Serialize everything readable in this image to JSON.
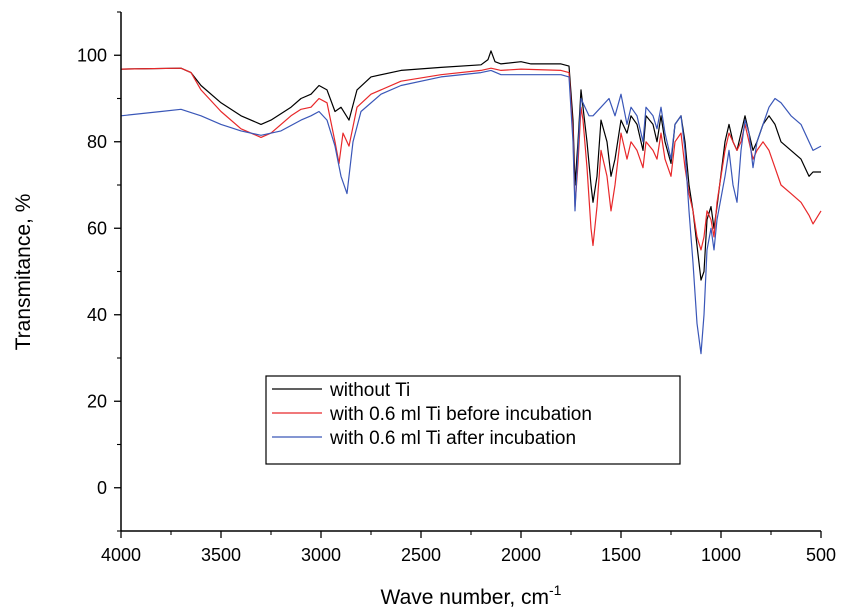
{
  "chart_data": {
    "type": "line",
    "xlabel": "Wave number, cm",
    "xlabel_superscript": "-1",
    "ylabel": "Transmitance, %",
    "xlim": [
      4000,
      500
    ],
    "ylim": [
      -10,
      110
    ],
    "x_reversed": true,
    "grid": false,
    "legend_position": "bottom-center",
    "x_ticks": [
      4000,
      3500,
      3000,
      2500,
      2000,
      1500,
      1000,
      500
    ],
    "y_ticks": [
      0,
      20,
      40,
      60,
      80,
      100
    ],
    "series": [
      {
        "name": "without Ti",
        "color": "#000000",
        "points": [
          [
            4000,
            96.8
          ],
          [
            3700,
            97
          ],
          [
            3650,
            96
          ],
          [
            3600,
            93
          ],
          [
            3500,
            89
          ],
          [
            3400,
            86
          ],
          [
            3300,
            84
          ],
          [
            3250,
            85
          ],
          [
            3150,
            88
          ],
          [
            3100,
            90
          ],
          [
            3050,
            91
          ],
          [
            3010,
            93
          ],
          [
            2970,
            92
          ],
          [
            2930,
            87
          ],
          [
            2900,
            88
          ],
          [
            2860,
            85
          ],
          [
            2820,
            92
          ],
          [
            2750,
            95
          ],
          [
            2600,
            96.5
          ],
          [
            2400,
            97.2
          ],
          [
            2200,
            97.8
          ],
          [
            2165,
            99
          ],
          [
            2150,
            101
          ],
          [
            2130,
            98.5
          ],
          [
            2100,
            98
          ],
          [
            2000,
            98.5
          ],
          [
            1950,
            98
          ],
          [
            1800,
            98
          ],
          [
            1760,
            97.5
          ],
          [
            1740,
            85
          ],
          [
            1730,
            70
          ],
          [
            1715,
            80
          ],
          [
            1700,
            92
          ],
          [
            1690,
            88
          ],
          [
            1670,
            80
          ],
          [
            1650,
            70
          ],
          [
            1640,
            66
          ],
          [
            1620,
            72
          ],
          [
            1600,
            85
          ],
          [
            1570,
            80
          ],
          [
            1550,
            72
          ],
          [
            1530,
            76
          ],
          [
            1500,
            85
          ],
          [
            1470,
            82
          ],
          [
            1450,
            86
          ],
          [
            1420,
            84
          ],
          [
            1390,
            78
          ],
          [
            1375,
            86
          ],
          [
            1340,
            84
          ],
          [
            1320,
            80
          ],
          [
            1300,
            86
          ],
          [
            1280,
            80
          ],
          [
            1250,
            75
          ],
          [
            1230,
            84
          ],
          [
            1200,
            86
          ],
          [
            1180,
            80
          ],
          [
            1160,
            70
          ],
          [
            1140,
            64
          ],
          [
            1120,
            56
          ],
          [
            1100,
            48
          ],
          [
            1085,
            50
          ],
          [
            1070,
            62
          ],
          [
            1050,
            65
          ],
          [
            1035,
            60
          ],
          [
            1020,
            65
          ],
          [
            980,
            80
          ],
          [
            960,
            84
          ],
          [
            940,
            80
          ],
          [
            920,
            78
          ],
          [
            900,
            82
          ],
          [
            880,
            86
          ],
          [
            860,
            82
          ],
          [
            840,
            78
          ],
          [
            820,
            80
          ],
          [
            790,
            84
          ],
          [
            760,
            86
          ],
          [
            730,
            84
          ],
          [
            700,
            80
          ],
          [
            650,
            78
          ],
          [
            600,
            76
          ],
          [
            560,
            72
          ],
          [
            540,
            73
          ],
          [
            500,
            73
          ]
        ]
      },
      {
        "name": "with 0.6 ml Ti before incubation",
        "color": "#e8282a",
        "points": [
          [
            4000,
            96.8
          ],
          [
            3700,
            97
          ],
          [
            3650,
            96
          ],
          [
            3600,
            92
          ],
          [
            3500,
            87
          ],
          [
            3400,
            83
          ],
          [
            3300,
            81
          ],
          [
            3250,
            82
          ],
          [
            3150,
            86
          ],
          [
            3100,
            87.5
          ],
          [
            3050,
            88
          ],
          [
            3010,
            90
          ],
          [
            2970,
            89
          ],
          [
            2930,
            80
          ],
          [
            2910,
            75
          ],
          [
            2890,
            82
          ],
          [
            2860,
            79
          ],
          [
            2820,
            88
          ],
          [
            2750,
            91
          ],
          [
            2600,
            94
          ],
          [
            2400,
            95.5
          ],
          [
            2200,
            96.5
          ],
          [
            2150,
            97
          ],
          [
            2100,
            96.5
          ],
          [
            2000,
            96.8
          ],
          [
            1800,
            96.5
          ],
          [
            1760,
            96
          ],
          [
            1740,
            82
          ],
          [
            1730,
            65
          ],
          [
            1715,
            75
          ],
          [
            1700,
            88
          ],
          [
            1690,
            85
          ],
          [
            1670,
            74
          ],
          [
            1650,
            60
          ],
          [
            1640,
            56
          ],
          [
            1620,
            65
          ],
          [
            1600,
            78
          ],
          [
            1570,
            72
          ],
          [
            1550,
            64
          ],
          [
            1530,
            70
          ],
          [
            1500,
            82
          ],
          [
            1470,
            76
          ],
          [
            1450,
            80
          ],
          [
            1420,
            78
          ],
          [
            1390,
            74
          ],
          [
            1375,
            80
          ],
          [
            1340,
            78
          ],
          [
            1320,
            76
          ],
          [
            1300,
            82
          ],
          [
            1280,
            76
          ],
          [
            1250,
            72
          ],
          [
            1230,
            80
          ],
          [
            1200,
            82
          ],
          [
            1180,
            74
          ],
          [
            1160,
            68
          ],
          [
            1140,
            64
          ],
          [
            1120,
            58
          ],
          [
            1100,
            55
          ],
          [
            1085,
            58
          ],
          [
            1070,
            64
          ],
          [
            1050,
            62
          ],
          [
            1035,
            58
          ],
          [
            1020,
            66
          ],
          [
            980,
            78
          ],
          [
            960,
            82
          ],
          [
            940,
            80
          ],
          [
            920,
            78
          ],
          [
            900,
            80
          ],
          [
            880,
            84
          ],
          [
            860,
            80
          ],
          [
            840,
            76
          ],
          [
            820,
            78
          ],
          [
            790,
            80
          ],
          [
            760,
            78
          ],
          [
            730,
            74
          ],
          [
            700,
            70
          ],
          [
            650,
            68
          ],
          [
            600,
            66
          ],
          [
            560,
            63
          ],
          [
            540,
            61
          ],
          [
            500,
            64
          ]
        ]
      },
      {
        "name": "with 0.6 ml Ti after incubation",
        "color": "#3a57b8",
        "points": [
          [
            4000,
            86
          ],
          [
            3800,
            87
          ],
          [
            3700,
            87.5
          ],
          [
            3600,
            86
          ],
          [
            3500,
            84
          ],
          [
            3400,
            82.5
          ],
          [
            3300,
            81.5
          ],
          [
            3200,
            82.5
          ],
          [
            3100,
            85
          ],
          [
            3050,
            86
          ],
          [
            3010,
            87
          ],
          [
            2970,
            85
          ],
          [
            2930,
            79
          ],
          [
            2900,
            72
          ],
          [
            2870,
            68
          ],
          [
            2840,
            80
          ],
          [
            2800,
            87
          ],
          [
            2700,
            91
          ],
          [
            2600,
            93
          ],
          [
            2400,
            95
          ],
          [
            2200,
            96
          ],
          [
            2150,
            96.5
          ],
          [
            2100,
            95.5
          ],
          [
            2000,
            95.5
          ],
          [
            1800,
            95.5
          ],
          [
            1760,
            95
          ],
          [
            1740,
            80
          ],
          [
            1730,
            64
          ],
          [
            1715,
            78
          ],
          [
            1700,
            90
          ],
          [
            1680,
            88
          ],
          [
            1660,
            86
          ],
          [
            1640,
            86
          ],
          [
            1600,
            88
          ],
          [
            1560,
            90
          ],
          [
            1530,
            86
          ],
          [
            1500,
            91
          ],
          [
            1470,
            84
          ],
          [
            1450,
            88
          ],
          [
            1420,
            86
          ],
          [
            1390,
            80
          ],
          [
            1375,
            88
          ],
          [
            1340,
            86
          ],
          [
            1320,
            83
          ],
          [
            1300,
            88
          ],
          [
            1280,
            82
          ],
          [
            1250,
            76
          ],
          [
            1230,
            84
          ],
          [
            1200,
            86
          ],
          [
            1180,
            78
          ],
          [
            1160,
            64
          ],
          [
            1140,
            52
          ],
          [
            1120,
            38
          ],
          [
            1100,
            31
          ],
          [
            1085,
            40
          ],
          [
            1070,
            55
          ],
          [
            1050,
            60
          ],
          [
            1035,
            55
          ],
          [
            1020,
            62
          ],
          [
            980,
            72
          ],
          [
            960,
            78
          ],
          [
            940,
            70
          ],
          [
            920,
            66
          ],
          [
            900,
            78
          ],
          [
            880,
            85
          ],
          [
            860,
            82
          ],
          [
            840,
            74
          ],
          [
            820,
            80
          ],
          [
            790,
            84
          ],
          [
            760,
            88
          ],
          [
            730,
            90
          ],
          [
            700,
            89
          ],
          [
            650,
            86
          ],
          [
            600,
            84
          ],
          [
            560,
            80
          ],
          [
            540,
            78
          ],
          [
            500,
            79
          ]
        ]
      }
    ]
  }
}
